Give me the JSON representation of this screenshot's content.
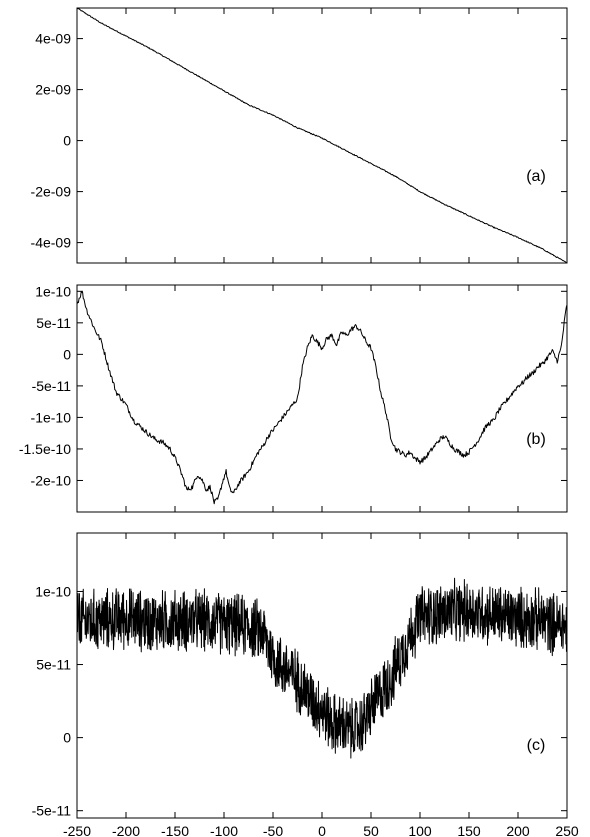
{
  "chart_data": [
    {
      "type": "line",
      "panel_label": "(a)",
      "title": "",
      "xlabel": "",
      "ylabel": "",
      "xlim": [
        -250,
        250
      ],
      "ylim": [
        -4.8e-09,
        5.2e-09
      ],
      "y_ticks": [
        {
          "value": -4e-09,
          "label": "-4e-09"
        },
        {
          "value": -2e-09,
          "label": "-2e-09"
        },
        {
          "value": 0,
          "label": "0"
        },
        {
          "value": 2e-09,
          "label": "2e-09"
        },
        {
          "value": 4e-09,
          "label": "4e-09"
        }
      ],
      "x_ticks": [
        -250,
        -200,
        -150,
        -100,
        -50,
        0,
        50,
        100,
        150,
        200,
        250
      ],
      "x_tick_labels_shown": false,
      "legend": "none",
      "grid": false,
      "series": [
        {
          "x": [
            -250,
            -225,
            -200,
            -175,
            -150,
            -125,
            -100,
            -75,
            -50,
            -25,
            0,
            25,
            50,
            75,
            100,
            125,
            150,
            175,
            200,
            225,
            250
          ],
          "values": [
            5.2e-09,
            4.6e-09,
            4.1e-09,
            3.6e-09,
            3.05e-09,
            2.5e-09,
            1.95e-09,
            1.4e-09,
            1e-09,
            5e-10,
            1e-10,
            -4e-10,
            -9e-10,
            -1.4e-09,
            -2e-09,
            -2.5e-09,
            -2.95e-09,
            -3.4e-09,
            -3.8e-09,
            -4.25e-09,
            -4.8e-09
          ]
        }
      ]
    },
    {
      "type": "line",
      "panel_label": "(b)",
      "title": "",
      "xlabel": "",
      "ylabel": "",
      "xlim": [
        -250,
        250
      ],
      "ylim": [
        -2.5e-10,
        1.1e-10
      ],
      "y_ticks": [
        {
          "value": -2e-10,
          "label": "-2e-10"
        },
        {
          "value": -1.5e-10,
          "label": "-1.5e-10"
        },
        {
          "value": -1e-10,
          "label": "-1e-10"
        },
        {
          "value": -5e-11,
          "label": "-5e-11"
        },
        {
          "value": 0,
          "label": "0"
        },
        {
          "value": 5e-11,
          "label": "5e-11"
        },
        {
          "value": 1e-10,
          "label": "1e-10"
        }
      ],
      "x_ticks": [
        -250,
        -200,
        -150,
        -100,
        -50,
        0,
        50,
        100,
        150,
        200,
        250
      ],
      "x_tick_labels_shown": false,
      "legend": "none",
      "grid": false,
      "series": [
        {
          "x": [
            -250,
            -245,
            -240,
            -232,
            -225,
            -218,
            -210,
            -200,
            -192,
            -185,
            -178,
            -170,
            -162,
            -155,
            -148,
            -142,
            -138,
            -132,
            -127,
            -122,
            -118,
            -114,
            -110,
            -106,
            -102,
            -98,
            -94,
            -90,
            -85,
            -80,
            -75,
            -70,
            -65,
            -60,
            -55,
            -50,
            -45,
            -40,
            -35,
            -30,
            -25,
            -20,
            -15,
            -10,
            -5,
            0,
            5,
            10,
            15,
            20,
            25,
            30,
            35,
            40,
            45,
            50,
            55,
            60,
            65,
            70,
            75,
            80,
            85,
            90,
            95,
            100,
            105,
            110,
            115,
            120,
            125,
            130,
            135,
            140,
            145,
            150,
            155,
            160,
            165,
            170,
            175,
            180,
            185,
            190,
            195,
            200,
            205,
            210,
            215,
            220,
            225,
            230,
            235,
            240,
            244,
            248,
            250
          ],
          "values": [
            8e-11,
            1e-10,
            7e-11,
            4e-11,
            2e-11,
            -2e-11,
            -6e-11,
            -8e-11,
            -1.05e-10,
            -1.15e-10,
            -1.25e-10,
            -1.35e-10,
            -1.4e-10,
            -1.5e-10,
            -1.7e-10,
            -1.95e-10,
            -2.15e-10,
            -2.1e-10,
            -1.9e-10,
            -2e-10,
            -2.15e-10,
            -2.1e-10,
            -2.35e-10,
            -2.3e-10,
            -2.05e-10,
            -1.85e-10,
            -2.15e-10,
            -2.2e-10,
            -2.05e-10,
            -1.95e-10,
            -1.85e-10,
            -1.7e-10,
            -1.55e-10,
            -1.45e-10,
            -1.3e-10,
            -1.2e-10,
            -1.1e-10,
            -1e-10,
            -9e-11,
            -8e-11,
            -7e-11,
            -2e-11,
            1e-11,
            3e-11,
            2e-11,
            1e-11,
            2.5e-11,
            3e-11,
            1.5e-11,
            3.5e-11,
            3e-11,
            4e-11,
            4.5e-11,
            3.5e-11,
            2e-11,
            1e-11,
            -2e-11,
            -6e-11,
            -9e-11,
            -1.3e-10,
            -1.5e-10,
            -1.55e-10,
            -1.6e-10,
            -1.55e-10,
            -1.65e-10,
            -1.7e-10,
            -1.65e-10,
            -1.55e-10,
            -1.45e-10,
            -1.35e-10,
            -1.3e-10,
            -1.4e-10,
            -1.5e-10,
            -1.55e-10,
            -1.6e-10,
            -1.55e-10,
            -1.45e-10,
            -1.35e-10,
            -1.2e-10,
            -1.1e-10,
            -1.05e-10,
            -9e-11,
            -8e-11,
            -7e-11,
            -6e-11,
            -5e-11,
            -4.5e-11,
            -3.5e-11,
            -3e-11,
            -2e-11,
            -1.5e-11,
            -5e-12,
            5e-12,
            -1e-11,
            1e-11,
            6e-11,
            8e-11
          ]
        }
      ]
    },
    {
      "type": "line",
      "panel_label": "(c)",
      "title": "",
      "xlabel": "",
      "ylabel": "",
      "xlim": [
        -250,
        250
      ],
      "ylim": [
        -5.5e-11,
        1.4e-10
      ],
      "y_ticks": [
        {
          "value": -5e-11,
          "label": "-5e-11"
        },
        {
          "value": 0,
          "label": "0"
        },
        {
          "value": 5e-11,
          "label": "5e-11"
        },
        {
          "value": 1e-10,
          "label": "1e-10"
        }
      ],
      "x_ticks": [
        -250,
        -200,
        -150,
        -100,
        -50,
        0,
        50,
        100,
        150,
        200,
        250
      ],
      "x_tick_labels": [
        "-250",
        "-200",
        "-150",
        "-100",
        "-50",
        "0",
        "50",
        "100",
        "150",
        "200",
        "250"
      ],
      "x_tick_labels_shown": true,
      "legend": "none",
      "grid": false,
      "series": [
        {
          "x": [
            -250,
            -225,
            -200,
            -175,
            -150,
            -125,
            -100,
            -75,
            -60,
            -50,
            -40,
            -30,
            -20,
            -10,
            0,
            10,
            20,
            30,
            40,
            50,
            60,
            70,
            80,
            90,
            100,
            125,
            150,
            175,
            200,
            225,
            250
          ],
          "values": [
            8e-11,
            8e-11,
            8.2e-11,
            7.9e-11,
            8e-11,
            8e-11,
            7.8e-11,
            7.6e-11,
            7.2e-11,
            5.5e-11,
            4.8e-11,
            4.3e-11,
            3.5e-11,
            2.5e-11,
            2e-11,
            1e-11,
            8e-12,
            5e-12,
            8e-12,
            2e-11,
            3e-11,
            4e-11,
            5.5e-11,
            7e-11,
            8.3e-11,
            8.5e-11,
            8.7e-11,
            8.4e-11,
            8.2e-11,
            8e-11,
            7.6e-11
          ],
          "noise_amplitude": 2e-11
        }
      ]
    }
  ]
}
